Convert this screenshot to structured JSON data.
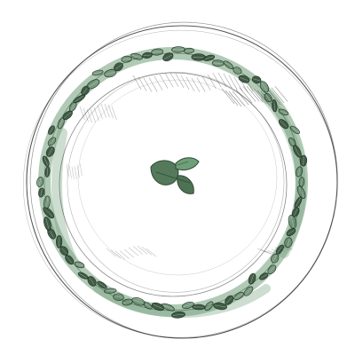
{
  "illustration": {
    "subject": "plate-with-leaf-garland",
    "style": "pencil-sketch-with-green-wash",
    "colors": {
      "background": "#ffffff",
      "pencil": "#3a3a3a",
      "pencil_light": "#8c8c8c",
      "wash": "#6f9f78",
      "leaf_dark": "#2f4a34",
      "leaf_mid": "#557a5b"
    },
    "icons": [
      "plate",
      "leaf-garland",
      "sprig"
    ]
  }
}
